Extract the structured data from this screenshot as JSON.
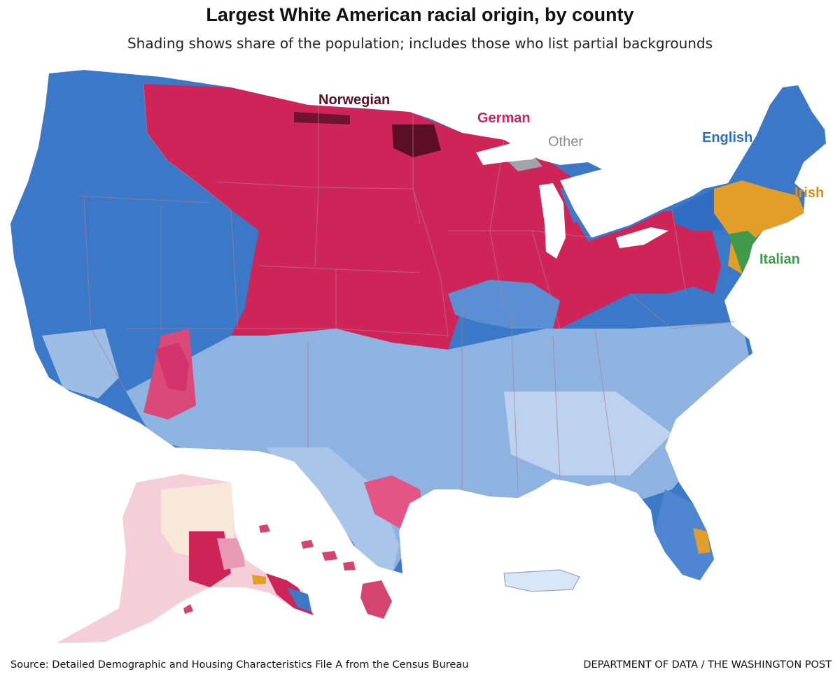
{
  "header": {
    "title": "Largest White American racial origin, by county",
    "subtitle": "Shading shows share of the population; includes those who list partial backgrounds"
  },
  "legend_labels": {
    "norwegian": "Norwegian",
    "german": "German",
    "other": "Other",
    "english": "English",
    "irish": "Irish",
    "italian": "Italian"
  },
  "colors": {
    "english": "#2f6ec2",
    "english_light": "#a9c3e6",
    "german": "#cf2458",
    "german_light": "#e8a0b8",
    "norwegian": "#5a0f22",
    "irish": "#e39e2a",
    "italian": "#3f9a4a",
    "other": "#a0a4a8",
    "border": "#b07a94"
  },
  "footer": {
    "source": "Source: Detailed Demographic and Housing Characteristics File A from the Census Bureau",
    "credit": "DEPARTMENT OF DATA / THE WASHINGTON POST"
  }
}
